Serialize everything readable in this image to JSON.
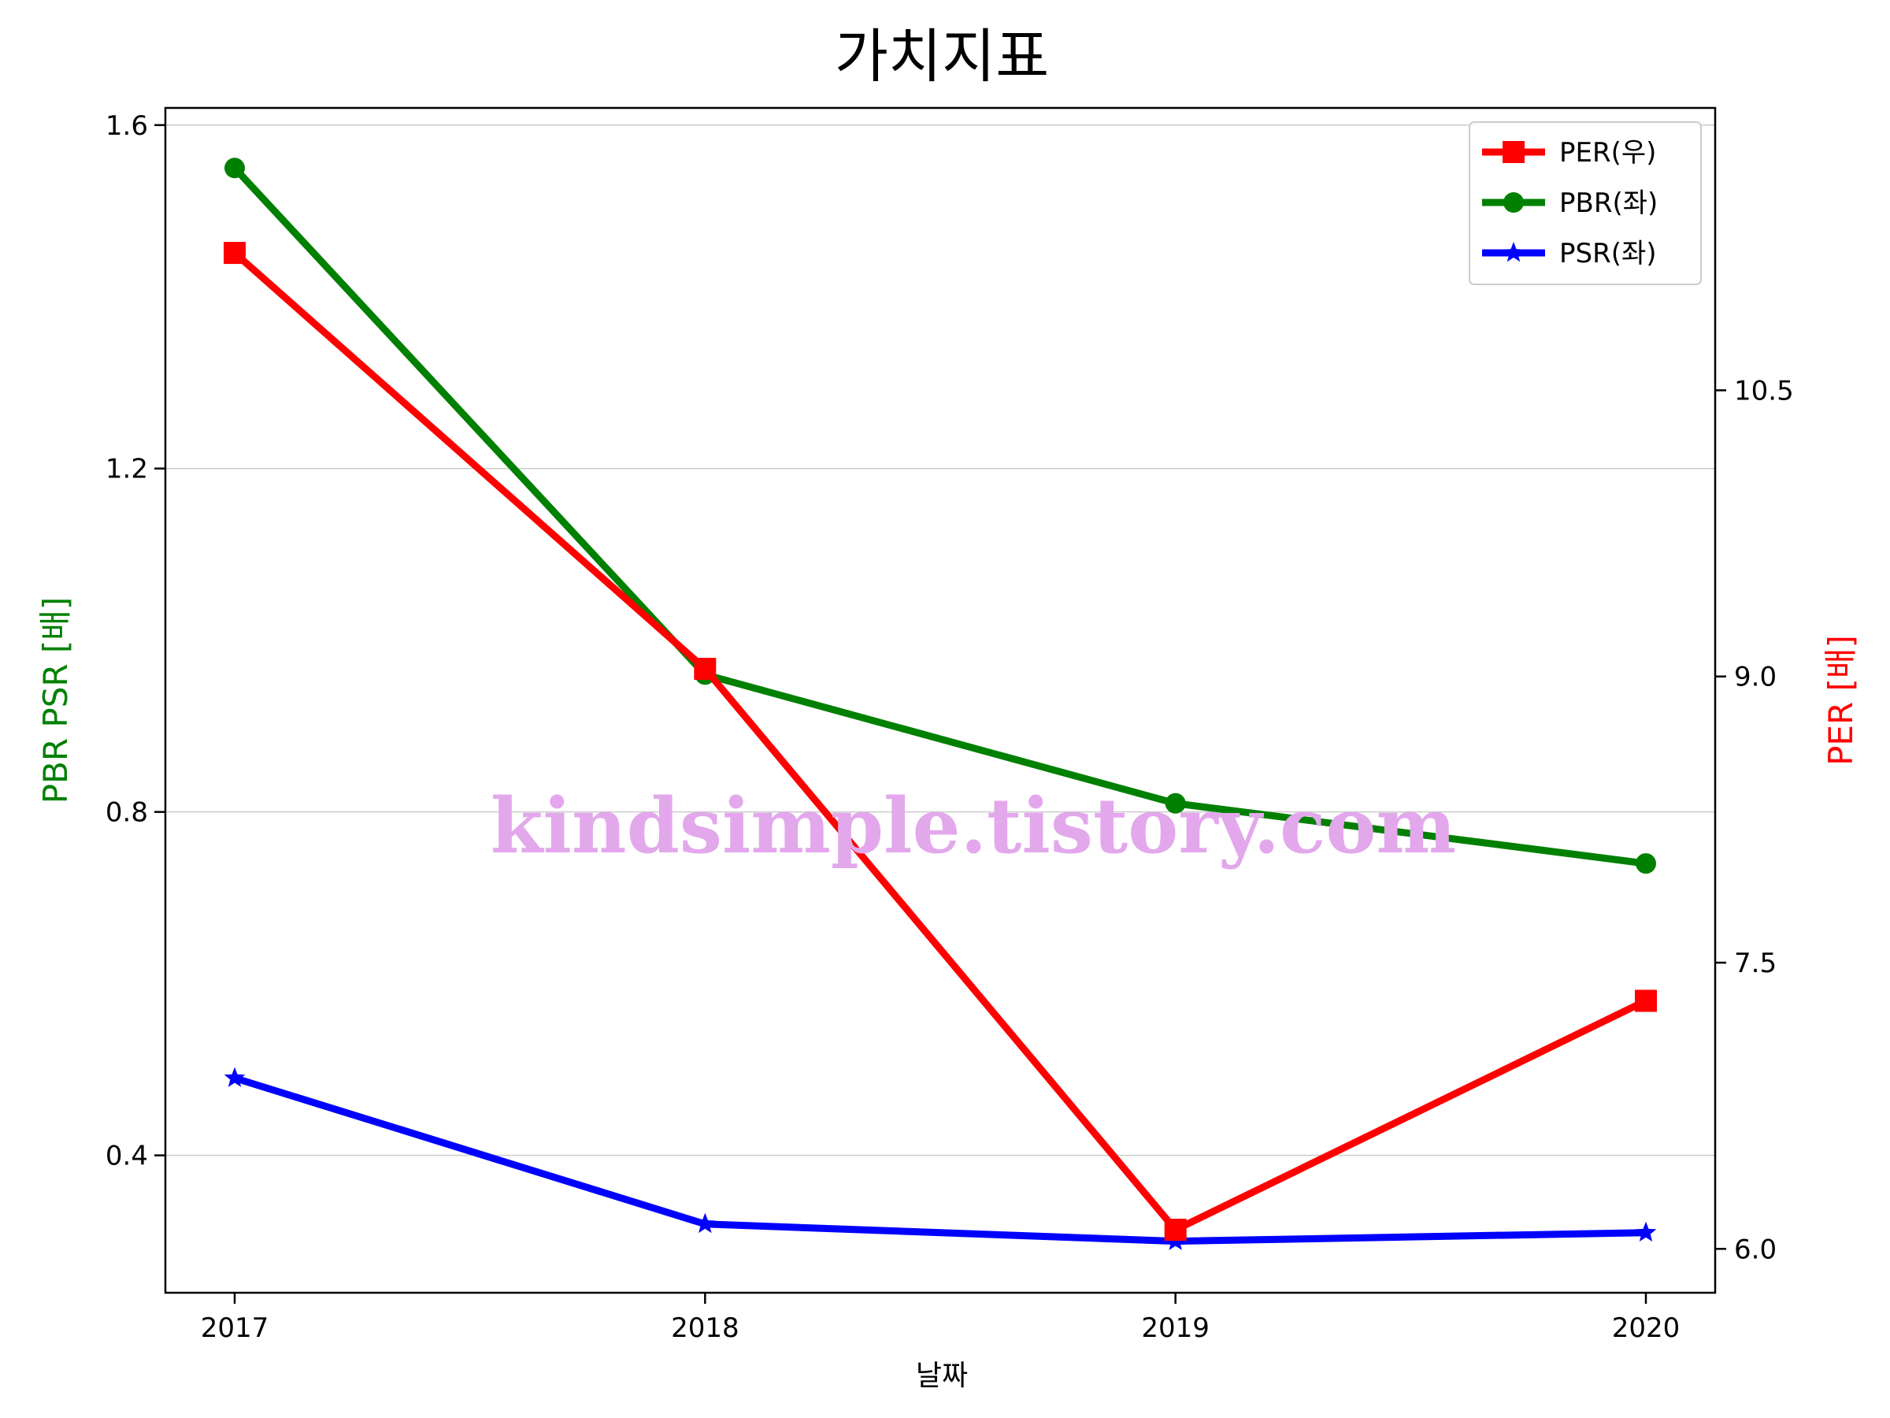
{
  "chart_data": {
    "type": "line",
    "title": "가치지표",
    "xlabel": "날짜",
    "ylabel_left": "PBR PSR [배]",
    "ylabel_right": "PER [배]",
    "categories": [
      "2017",
      "2018",
      "2019",
      "2020"
    ],
    "left_axis": {
      "ylim": [
        0.24,
        1.62
      ],
      "ticks": [
        "0.4",
        "0.8",
        "1.2",
        "1.6"
      ],
      "grid": true
    },
    "right_axis": {
      "ylim": [
        5.77,
        11.98
      ],
      "ticks": [
        "6.0",
        "7.5",
        "9.0",
        "10.5"
      ],
      "grid": false
    },
    "series": [
      {
        "name": "PER(우)",
        "axis": "right",
        "color": "#ff0000",
        "marker": "square",
        "values": [
          11.22,
          9.04,
          6.1,
          7.3
        ]
      },
      {
        "name": "PBR(좌)",
        "axis": "left",
        "color": "#008000",
        "marker": "circle",
        "values": [
          1.55,
          0.96,
          0.81,
          0.74
        ]
      },
      {
        "name": "PSR(좌)",
        "axis": "left",
        "color": "#0000ff",
        "marker": "star",
        "values": [
          0.49,
          0.32,
          0.3,
          0.31
        ]
      }
    ],
    "legend_position": "top-right",
    "label_colors": {
      "left": "#008000",
      "right": "#ff0000"
    }
  },
  "watermark": "kindsimple.tistory.com"
}
